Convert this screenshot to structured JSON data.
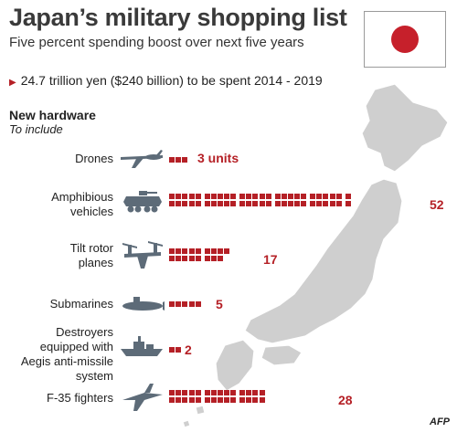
{
  "header": {
    "title": "Japan’s military shopping list",
    "subtitle": "Five percent spending boost over next five years",
    "budget_note": "24.7 trillion yen ($240 billion) to be spent 2014 - 2019"
  },
  "section": {
    "title": "New hardware",
    "subtitle": "To include"
  },
  "colors": {
    "accent": "#b52026",
    "map": "#cfcfcf",
    "icon": "#5d6b78",
    "flag_sun": "#c6202b"
  },
  "icons": [
    "drone-icon",
    "amphibious-vehicle-icon",
    "tilt-rotor-plane-icon",
    "submarine-icon",
    "destroyer-icon",
    "f35-fighter-icon"
  ],
  "chart_data": {
    "type": "bar",
    "unit_note": "each square = 1 unit",
    "categories": [
      "Drones",
      "Amphibious vehicles",
      "Tilt rotor planes",
      "Submarines",
      "Destroyers equipped with Aegis anti-missile system",
      "F-35 fighters"
    ],
    "values": [
      3,
      52,
      17,
      5,
      2,
      28
    ],
    "data_labels": [
      "3 units",
      "52",
      "17",
      "5",
      "2",
      "28"
    ]
  },
  "source": "AFP"
}
